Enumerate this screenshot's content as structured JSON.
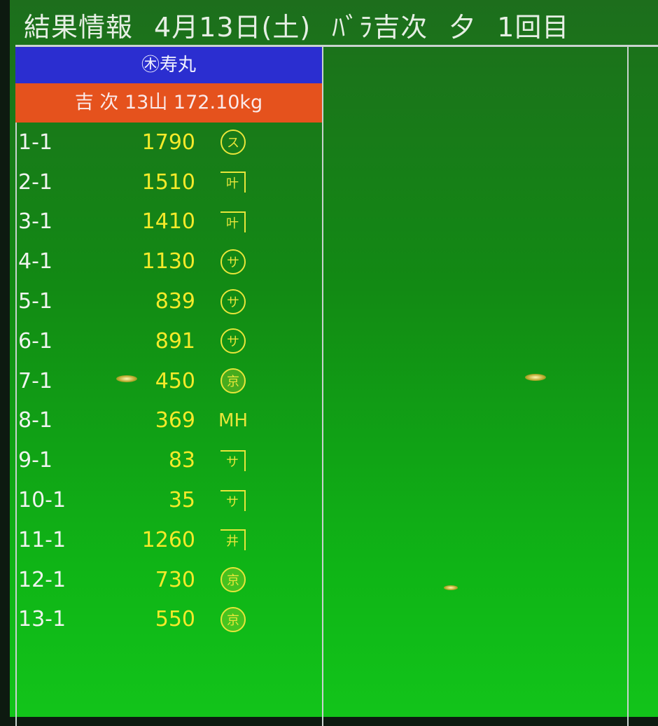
{
  "header": {
    "title": "結果情報",
    "date": "4月13日(土)",
    "category": "ﾊﾞﾗ吉次",
    "session": "夕",
    "round": "1回目"
  },
  "panel": {
    "vessel": "㊍寿丸",
    "lot_summary": "吉 次 13山 172.10kg",
    "rows": [
      {
        "lot": "1-1",
        "price": "1790",
        "buyer": "ス",
        "mark": "circle"
      },
      {
        "lot": "2-1",
        "price": "1510",
        "buyer": "叶",
        "mark": "bar"
      },
      {
        "lot": "3-1",
        "price": "1410",
        "buyer": "叶",
        "mark": "bar"
      },
      {
        "lot": "4-1",
        "price": "1130",
        "buyer": "サ",
        "mark": "circle"
      },
      {
        "lot": "5-1",
        "price": "839",
        "buyer": "サ",
        "mark": "circle"
      },
      {
        "lot": "6-1",
        "price": "891",
        "buyer": "サ",
        "mark": "circle"
      },
      {
        "lot": "7-1",
        "price": "450",
        "buyer": "京",
        "mark": "fill"
      },
      {
        "lot": "8-1",
        "price": "369",
        "buyer": "MH",
        "mark": "plain"
      },
      {
        "lot": "9-1",
        "price": "83",
        "buyer": "サ",
        "mark": "bar"
      },
      {
        "lot": "10-1",
        "price": "35",
        "buyer": "サ",
        "mark": "bar"
      },
      {
        "lot": "11-1",
        "price": "1260",
        "buyer": "井",
        "mark": "bar"
      },
      {
        "lot": "12-1",
        "price": "730",
        "buyer": "京",
        "mark": "fill"
      },
      {
        "lot": "13-1",
        "price": "550",
        "buyer": "京",
        "mark": "fill"
      }
    ]
  },
  "colors": {
    "background": "#12a016",
    "vessel_bar": "#2b2ed0",
    "lot_bar": "#e5521d",
    "price": "#f4ea2a"
  }
}
